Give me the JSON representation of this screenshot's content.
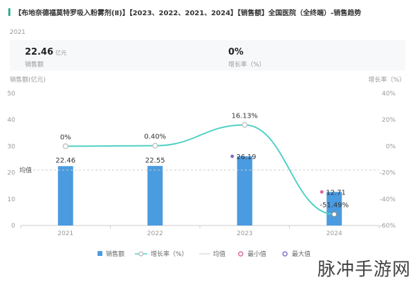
{
  "header": {
    "title": "【布地奈德福莫特罗吸入粉雾剂(Ⅱ)】【2023、2022、2021、2024】【销售额】全国医院（全终端）-销售趋势",
    "accent": "#2bb18f"
  },
  "summary": {
    "year": "2021",
    "sales_value": "22.46",
    "sales_unit": "亿元",
    "sales_label": "销售额",
    "growth_value": "0%",
    "growth_label": "增长率（%）"
  },
  "watermark": "脉冲手游网",
  "chart_data": {
    "type": "bar",
    "categories": [
      "2021",
      "2022",
      "2023",
      "2024"
    ],
    "ylabel": "销售额(亿元)",
    "y2label": "增长率（%）",
    "ylim": [
      0,
      50
    ],
    "yticks": [
      "0",
      "10",
      "20",
      "30",
      "40",
      "50"
    ],
    "y2lim": [
      -60,
      40
    ],
    "y2ticks": [
      "-60%",
      "-40%",
      "-20%",
      "0%",
      "20%",
      "40%"
    ],
    "series": [
      {
        "name": "销售额",
        "type": "bar",
        "values": [
          22.46,
          22.55,
          26.19,
          12.71
        ],
        "labels": [
          "22.46",
          "22.55",
          "26.19",
          "12.71"
        ],
        "color": "#4a9be0"
      },
      {
        "name": "增长率（%）",
        "type": "line",
        "values": [
          0,
          0.4,
          16.13,
          -51.49
        ],
        "labels": [
          "0%",
          "0.40%",
          "16.13%",
          "-51.49%"
        ],
        "color": "#4fd1c5"
      }
    ],
    "average": {
      "name": "均值",
      "label": "均值",
      "value": 20.98,
      "color": "#ccc"
    },
    "min": {
      "name": "最小值",
      "color": "#d9689a"
    },
    "max": {
      "name": "最大值",
      "color": "#7f6fc9"
    },
    "legend": "bottom",
    "grid": false
  }
}
